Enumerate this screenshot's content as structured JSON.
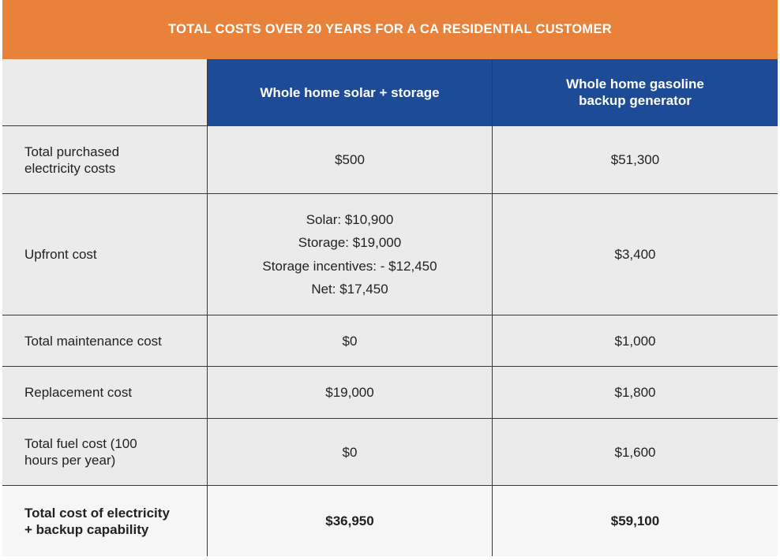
{
  "header": {
    "title": "TOTAL COSTS OVER 20 YEARS FOR A CA RESIDENTIAL CUSTOMER"
  },
  "table": {
    "columns": [
      "Whole home solar + storage",
      [
        "Whole home gasoline",
        "backup generator"
      ]
    ],
    "rows": [
      {
        "label": [
          "Total purchased",
          "electricity costs"
        ],
        "values": [
          "$500",
          "$51,300"
        ]
      },
      {
        "label": "Upfront cost",
        "values": [
          [
            "Solar: $10,900",
            "Storage: $19,000",
            "Storage incentives: - $12,450",
            "Net: $17,450"
          ],
          "$3,400"
        ]
      },
      {
        "label": "Total maintenance cost",
        "values": [
          "$0",
          "$1,000"
        ]
      },
      {
        "label": "Replacement cost",
        "values": [
          "$19,000",
          "$1,800"
        ]
      },
      {
        "label": [
          "Total fuel cost (100",
          "hours per year)"
        ],
        "values": [
          "$0",
          "$1,600"
        ]
      },
      {
        "label": [
          "Total cost of electricity",
          "+ backup capability"
        ],
        "values": [
          "$36,950",
          "$59,100"
        ],
        "bold": true
      }
    ]
  }
}
